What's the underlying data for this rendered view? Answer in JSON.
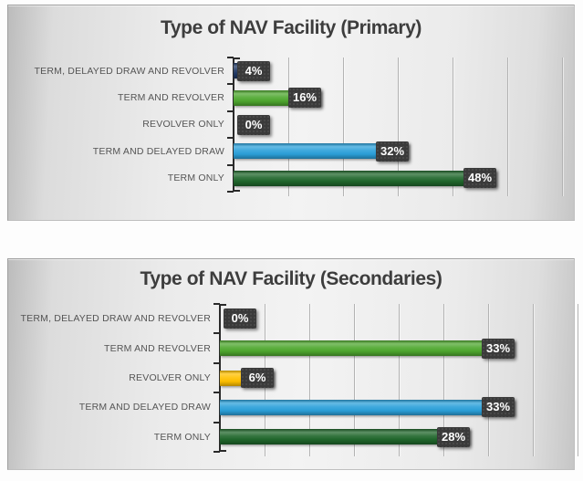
{
  "styles": {
    "title_color": "#3d3d3d",
    "category_label_color": "#555555",
    "value_box_background": "#3a3a3a",
    "value_box_text": "#ffffff",
    "gridline_color": "#b3b3b3",
    "axis_color": "#2a2a2a",
    "panel_background": "#e9e9e9"
  },
  "chart_data": [
    {
      "type": "bar",
      "orientation": "horizontal",
      "title": "Type of NAV Facility (Primary)",
      "categories": [
        "TERM, DELAYED DRAW AND REVOLVER",
        "TERM AND REVOLVER",
        "REVOLVER ONLY",
        "TERM AND DELAYED DRAW",
        "TERM ONLY"
      ],
      "values": [
        4,
        16,
        0,
        32,
        48
      ],
      "data_labels": [
        "4%",
        "16%",
        "0%",
        "32%",
        "48%"
      ],
      "unit": "%",
      "xlim": [
        0,
        60
      ],
      "grid_step": 10,
      "grid": true,
      "legend": false,
      "bar_colors": [
        "#1f3864",
        "#4ea72e",
        "#ffc000",
        "#2ba0da",
        "#1f662b"
      ],
      "xlabel": "",
      "ylabel": ""
    },
    {
      "type": "bar",
      "orientation": "horizontal",
      "title": "Type of NAV Facility (Secondaries)",
      "categories": [
        "TERM, DELAYED DRAW AND REVOLVER",
        "TERM AND REVOLVER",
        "REVOLVER ONLY",
        "TERM AND DELAYED DRAW",
        "TERM ONLY"
      ],
      "values": [
        0,
        33,
        6,
        33,
        28
      ],
      "data_labels": [
        "0%",
        "33%",
        "6%",
        "33%",
        "28%"
      ],
      "unit": "%",
      "xlim": [
        0,
        40
      ],
      "grid_step": 5,
      "grid": true,
      "legend": false,
      "bar_colors": [
        "#1f3864",
        "#4ea72e",
        "#ffc000",
        "#2ba0da",
        "#1f662b"
      ],
      "xlabel": "",
      "ylabel": ""
    }
  ]
}
